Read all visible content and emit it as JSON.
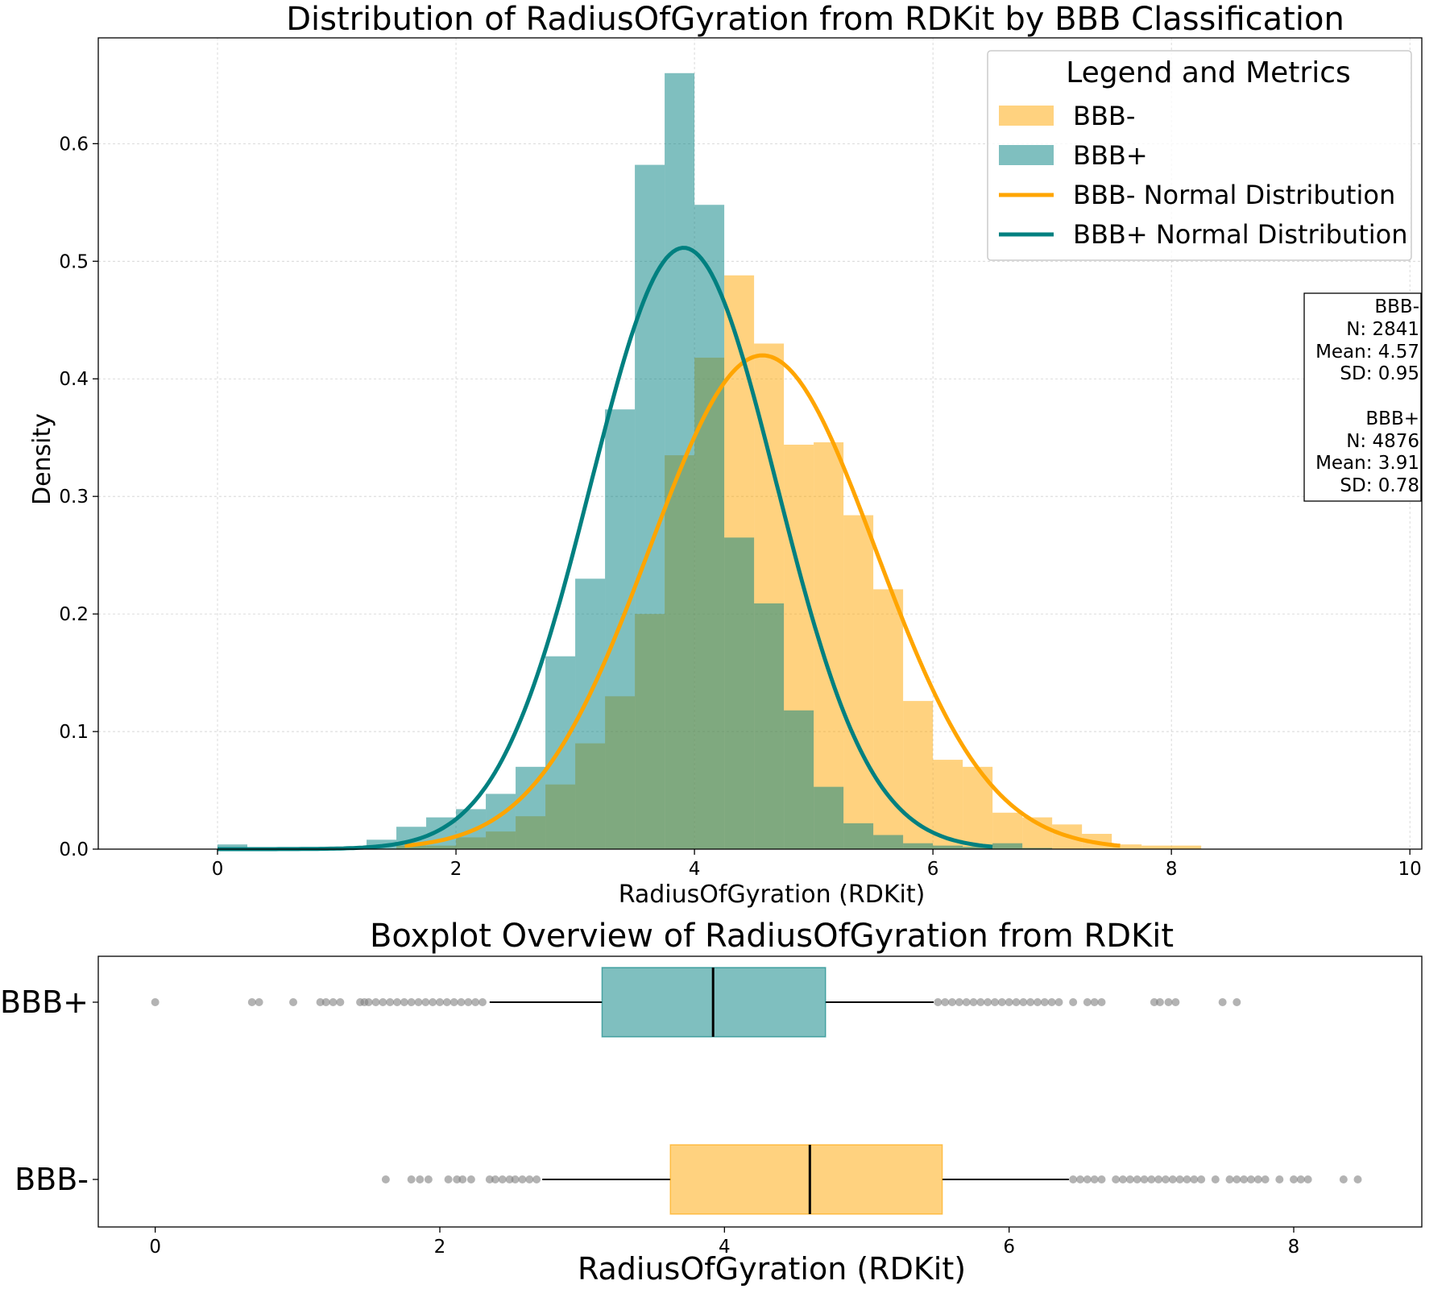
{
  "colors": {
    "bbb_minus": "#ffa500",
    "bbb_plus": "#008080",
    "outlier": "#808080",
    "grid": "#b0b0b0"
  },
  "chart_data": [
    {
      "type": "histogram",
      "title": "Distribution of RadiusOfGyration from RDKit by BBB Classification",
      "xlabel": "RadiusOfGyration (RDKit)",
      "ylabel": "Density",
      "xlim": [
        -1,
        10.1
      ],
      "ylim": [
        0,
        0.69
      ],
      "xticks": [
        "0",
        "2",
        "4",
        "6",
        "8",
        "10"
      ],
      "yticks": [
        "0.0",
        "0.1",
        "0.2",
        "0.3",
        "0.4",
        "0.5",
        "0.6"
      ],
      "grid": true,
      "legend_title": "Legend and Metrics",
      "legend_position": "top-right",
      "bin_width": 0.25,
      "series": [
        {
          "name": "BBB-",
          "bin_start": 1.5,
          "values": [
            0.003,
            0.003,
            0.01,
            0.015,
            0.028,
            0.055,
            0.09,
            0.13,
            0.2,
            0.335,
            0.418,
            0.488,
            0.43,
            0.344,
            0.346,
            0.284,
            0.221,
            0.126,
            0.076,
            0.07,
            0.031,
            0.027,
            0.021,
            0.013,
            0.004,
            0.003,
            0.003
          ]
        },
        {
          "name": "BBB+",
          "bin_start": 0,
          "values": [
            0.004,
            0,
            0,
            0,
            0.002,
            0.008,
            0.019,
            0.027,
            0.034,
            0.047,
            0.07,
            0.164,
            0.23,
            0.374,
            0.582,
            0.66,
            0.548,
            0.265,
            0.209,
            0.118,
            0.053,
            0.022,
            0.012,
            0.005,
            0.003,
            0.002,
            0.005,
            0.001
          ]
        }
      ],
      "curves": [
        {
          "name": "BBB- Normal Distribution",
          "mean": 4.57,
          "sd": 0.95,
          "x_range": [
            1.57,
            7.57
          ]
        },
        {
          "name": "BBB+ Normal Distribution",
          "mean": 3.91,
          "sd": 0.78,
          "x_range": [
            0,
            6.5
          ]
        }
      ],
      "annotation": [
        "BBB-",
        "N: 2841",
        "Mean: 4.57",
        "SD: 0.95",
        "",
        "BBB+",
        "N: 4876",
        "Mean: 3.91",
        "SD: 0.78"
      ]
    },
    {
      "type": "boxplot",
      "title": "Boxplot Overview of RadiusOfGyration from RDKit",
      "xlabel": "RadiusOfGyration (RDKit)",
      "xlim": [
        -0.4,
        8.9
      ],
      "xticks": [
        "0",
        "2",
        "4",
        "6",
        "8"
      ],
      "categories": [
        "BBB+",
        "BBB-"
      ],
      "boxes": [
        {
          "name": "BBB+",
          "q1": 3.14,
          "median": 3.92,
          "q3": 4.71,
          "whisker_low": 2.35,
          "whisker_high": 5.47,
          "outliers": [
            0,
            0.68,
            0.73,
            0.97,
            1.16,
            1.2,
            1.25,
            1.3,
            1.44,
            1.47,
            1.5,
            1.55,
            1.6,
            1.65,
            1.7,
            1.75,
            1.8,
            1.85,
            1.9,
            1.95,
            2.0,
            2.05,
            2.1,
            2.15,
            2.2,
            2.25,
            2.3,
            5.5,
            5.55,
            5.6,
            5.65,
            5.7,
            5.75,
            5.8,
            5.85,
            5.9,
            5.95,
            6.0,
            6.05,
            6.1,
            6.15,
            6.2,
            6.25,
            6.3,
            6.35,
            6.45,
            6.55,
            6.6,
            6.65,
            7.02,
            7.06,
            7.12,
            7.17,
            7.5,
            7.6
          ]
        },
        {
          "name": "BBB-",
          "q1": 3.62,
          "median": 4.6,
          "q3": 5.53,
          "whisker_low": 2.72,
          "whisker_high": 6.42,
          "outliers": [
            1.62,
            1.8,
            1.86,
            1.92,
            2.06,
            2.12,
            2.16,
            2.22,
            2.35,
            2.39,
            2.44,
            2.49,
            2.53,
            2.58,
            2.63,
            2.68,
            6.45,
            6.5,
            6.55,
            6.6,
            6.65,
            6.75,
            6.8,
            6.85,
            6.9,
            6.95,
            7.0,
            7.05,
            7.1,
            7.15,
            7.2,
            7.25,
            7.3,
            7.35,
            7.45,
            7.55,
            7.6,
            7.65,
            7.7,
            7.75,
            7.8,
            7.9,
            8.0,
            8.05,
            8.1,
            8.35,
            8.45
          ]
        }
      ]
    }
  ]
}
